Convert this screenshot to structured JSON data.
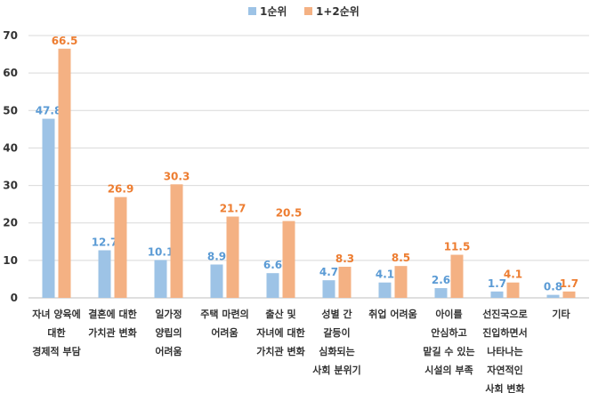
{
  "colors": {
    "series1": "#9dc3e6",
    "series2": "#f4b183",
    "label1": "#5b9bd5",
    "label2": "#ed7d31"
  },
  "chart_data": {
    "type": "bar",
    "title": "",
    "xlabel": "",
    "ylabel": "",
    "ylim": [
      0,
      70
    ],
    "yticks": [
      0,
      10,
      20,
      30,
      40,
      50,
      60,
      70
    ],
    "grid": "horizontal",
    "legend_position": "top-center",
    "categories": [
      [
        "자녀 양육에",
        "대한",
        "경제적 부담"
      ],
      [
        "결혼에 대한",
        "가치관 변화"
      ],
      [
        "일가정",
        "양립의",
        "어려움"
      ],
      [
        "주택 마련의",
        "어려움"
      ],
      [
        "출산 및",
        "자녀에 대한",
        "가치관 변화"
      ],
      [
        "성별 간",
        "갈등이",
        "심화되는",
        "사회 분위기"
      ],
      [
        "취업 어려움"
      ],
      [
        "아이를",
        "안심하고",
        "맡길 수 있는",
        "시설의 부족"
      ],
      [
        "선진국으로",
        "진입하면서",
        "나타나는",
        "자연적인",
        "사회 변화"
      ],
      [
        "기타"
      ]
    ],
    "series": [
      {
        "name": "1순위",
        "values": [
          47.8,
          12.7,
          10.1,
          8.9,
          6.6,
          4.7,
          4.1,
          2.6,
          1.7,
          0.8
        ]
      },
      {
        "name": "1+2순위",
        "values": [
          66.5,
          26.9,
          30.3,
          21.7,
          20.5,
          8.3,
          8.5,
          11.5,
          4.1,
          1.7
        ]
      }
    ]
  }
}
